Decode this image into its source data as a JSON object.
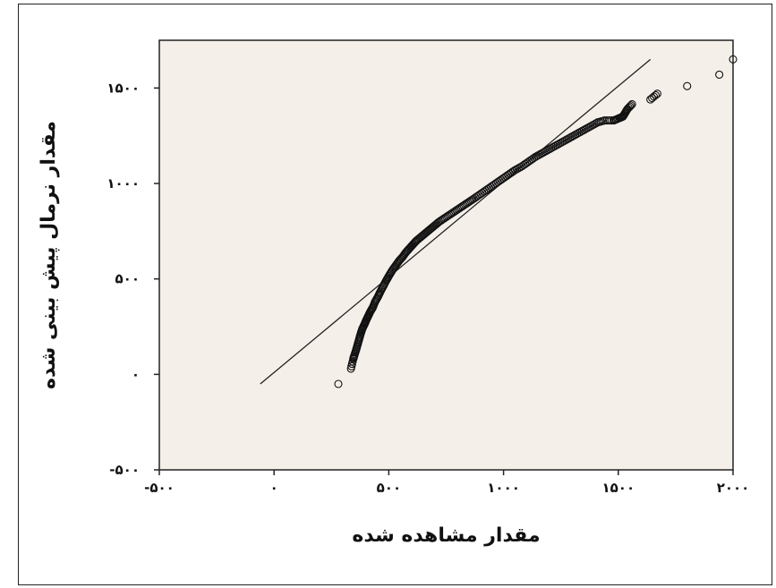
{
  "chart_data": {
    "type": "scatter",
    "title": "",
    "xlabel": "مقدار مشاهده شده",
    "ylabel": "مقدار نرمال پیش بینی شده",
    "xlim": [
      -500,
      2000
    ],
    "ylim": [
      -500,
      1750
    ],
    "x_ticks": [
      {
        "value": -500,
        "label": "-۵۰۰"
      },
      {
        "value": 0,
        "label": "۰"
      },
      {
        "value": 500,
        "label": "۵۰۰"
      },
      {
        "value": 1000,
        "label": "۱۰۰۰"
      },
      {
        "value": 1500,
        "label": "۱۵۰۰"
      },
      {
        "value": 2000,
        "label": "۲۰۰۰"
      }
    ],
    "y_ticks": [
      {
        "value": -500,
        "label": "-۵۰۰"
      },
      {
        "value": 0,
        "label": "۰"
      },
      {
        "value": 500,
        "label": "۵۰۰"
      },
      {
        "value": 1000,
        "label": "۱۰۰۰"
      },
      {
        "value": 1500,
        "label": "۱۵۰۰"
      }
    ],
    "reference_line": {
      "x": [
        -60,
        1640
      ],
      "y": [
        -50,
        1650
      ]
    },
    "points": {
      "x": [
        280,
        335,
        345,
        350,
        358,
        365,
        372,
        378,
        385,
        395,
        402,
        410,
        420,
        430,
        440,
        452,
        462,
        475,
        488,
        500,
        515,
        530,
        545,
        560,
        575,
        590,
        605,
        620,
        640,
        660,
        680,
        700,
        720,
        745,
        770,
        795,
        820,
        845,
        870,
        900,
        930,
        960,
        990,
        1020,
        1050,
        1080,
        1110,
        1140,
        1170,
        1200,
        1230,
        1260,
        1290,
        1320,
        1350,
        1380,
        1410,
        1440,
        1480,
        1500,
        1520,
        1530,
        1540,
        1560,
        1640,
        1670,
        1800,
        1940,
        2000
      ],
      "y": [
        -50,
        30,
        80,
        100,
        130,
        160,
        190,
        215,
        240,
        265,
        285,
        305,
        330,
        350,
        380,
        405,
        430,
        460,
        490,
        515,
        545,
        570,
        595,
        615,
        640,
        660,
        680,
        700,
        720,
        740,
        760,
        780,
        800,
        820,
        840,
        860,
        880,
        900,
        920,
        945,
        970,
        995,
        1020,
        1045,
        1070,
        1090,
        1115,
        1140,
        1160,
        1180,
        1200,
        1220,
        1240,
        1260,
        1280,
        1300,
        1320,
        1330,
        1330,
        1340,
        1350,
        1370,
        1390,
        1415,
        1440,
        1470,
        1510,
        1570,
        1650
      ]
    },
    "grid": false,
    "plot_background": "#f5efea",
    "point_color": "#111111"
  }
}
